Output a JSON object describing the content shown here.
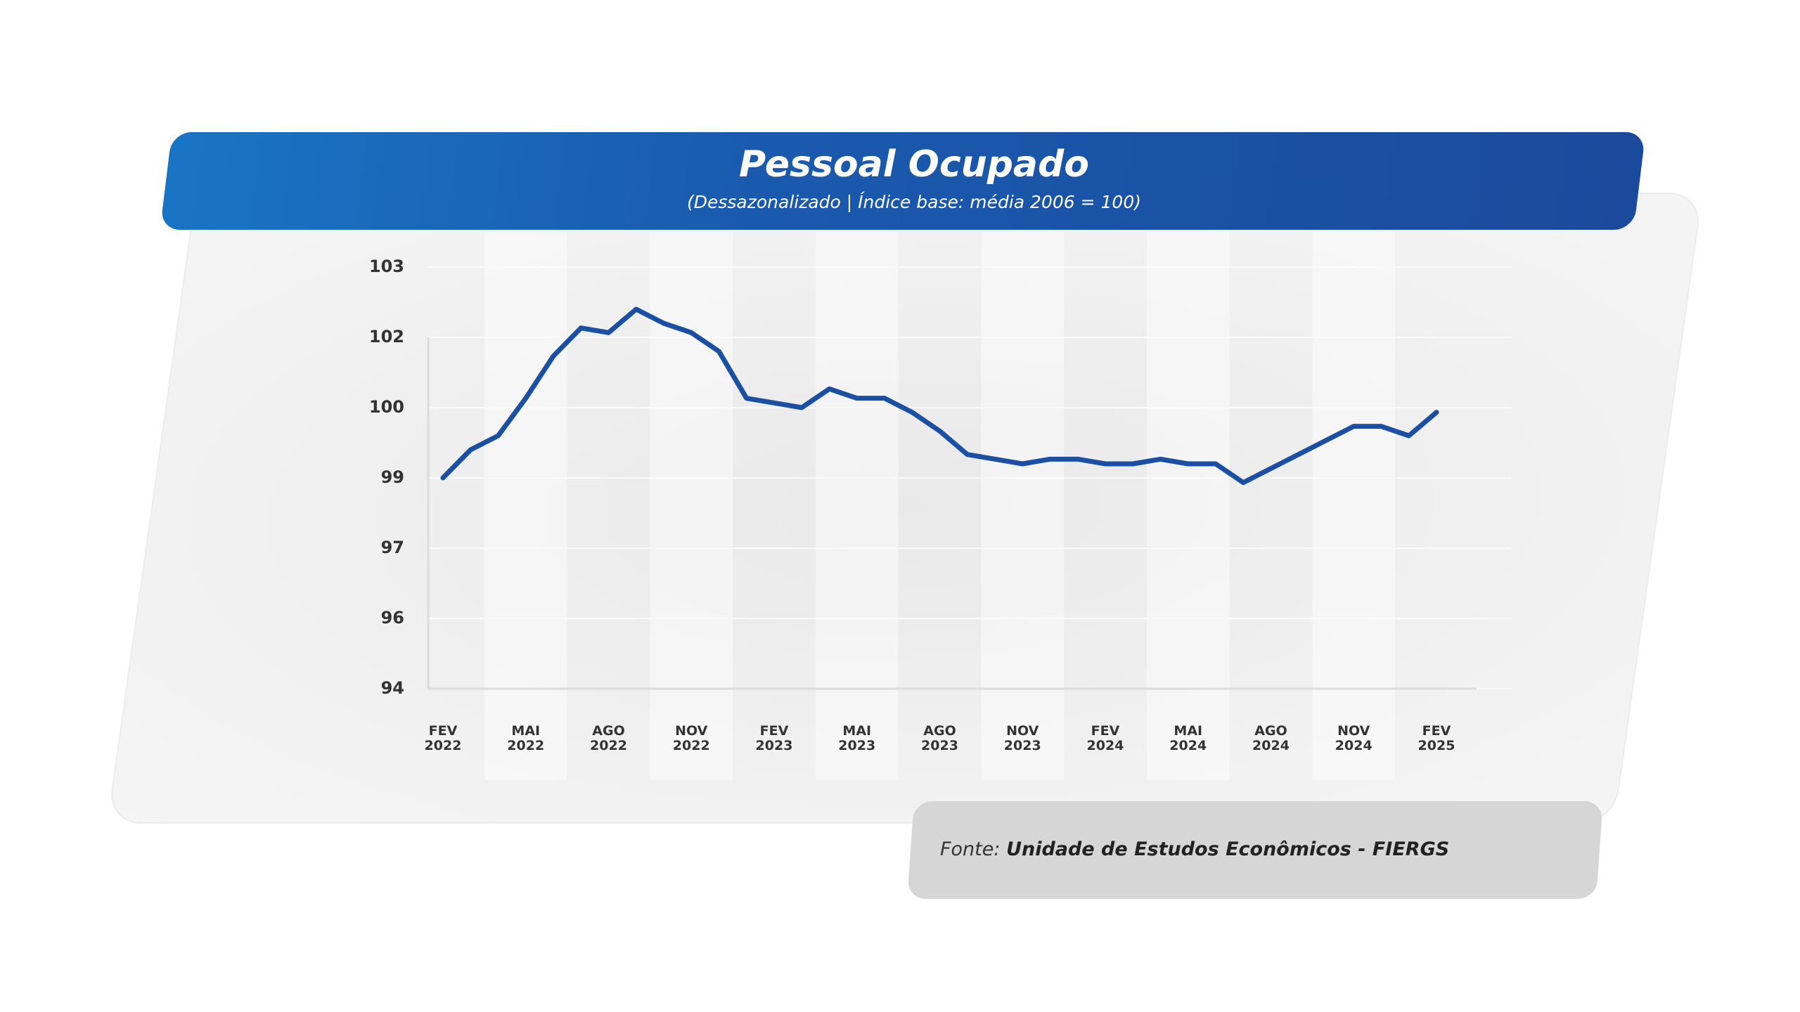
{
  "header": {
    "title": "Pessoal Ocupado",
    "subtitle": "(Dessazonalizado | Índice base: média 2006 = 100)"
  },
  "chart_data": {
    "type": "line",
    "categories": [
      "FEV 2022",
      null,
      null,
      "MAI 2022",
      null,
      null,
      "AGO 2022",
      null,
      null,
      "NOV 2022",
      null,
      null,
      "FEV 2023",
      null,
      null,
      "MAI 2023",
      null,
      null,
      "AGO 2023",
      null,
      null,
      "NOV 2023",
      null,
      null,
      "FEV 2024",
      null,
      null,
      "MAI 2024",
      null,
      null,
      "AGO 2024",
      null,
      null,
      "NOV 2024",
      null,
      null,
      "FEV 2025"
    ],
    "values": [
      98.5,
      99.1,
      99.4,
      100.2,
      101.1,
      101.7,
      101.6,
      102.1,
      101.8,
      101.6,
      101.2,
      100.2,
      100.1,
      100.0,
      100.4,
      100.2,
      100.2,
      99.9,
      99.5,
      99.0,
      98.9,
      98.8,
      98.9,
      98.9,
      98.8,
      98.8,
      98.9,
      98.8,
      98.8,
      98.4,
      98.7,
      99.0,
      99.3,
      99.6,
      99.6,
      99.4,
      99.9
    ],
    "color": "#1b4fa3",
    "ylim": [
      94,
      103
    ],
    "yticks": [
      94,
      {
        "value": 95.5,
        "label": "96"
      },
      97,
      {
        "value": 98.5,
        "label": "99"
      },
      100,
      {
        "value": 101.5,
        "label": "102"
      },
      103
    ]
  },
  "source": {
    "prefix": "Fonte:",
    "name": "Unidade de Estudos Econômicos - FIERGS"
  }
}
